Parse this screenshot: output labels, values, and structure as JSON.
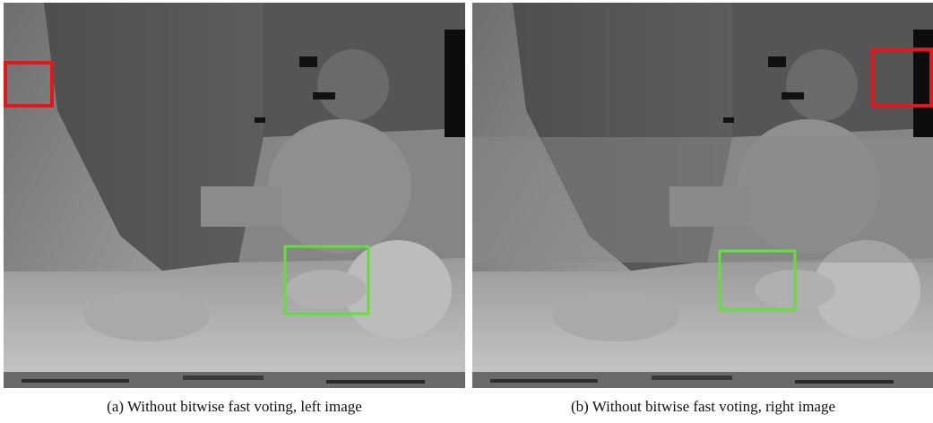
{
  "figure": {
    "panels": [
      {
        "caption": "(a) Without bitwise fast voting, left image"
      },
      {
        "caption": "(b) Without bitwise fast voting, right image"
      }
    ]
  }
}
